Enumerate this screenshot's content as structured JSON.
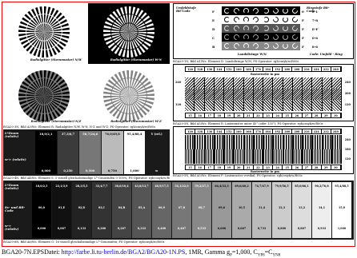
{
  "footer": {
    "prefix": "BGA20-7N.EPSDatei: ",
    "link": "http://farbe.li.tu-berlin.de/BGA2/BGA20-1N.PS",
    "suffix": ", 1MR, Gamma g",
    "sub_p": "P",
    "suffix2": "=1,000, C",
    "sub_yp": "YP8",
    "suffix3": "=C",
    "sub_yn": "YN8"
  },
  "sunburst": {
    "label_tl": "Radialgitter (Sternmuster) N/W",
    "label_tr": "Radialgitter (Sternmuster) W-N",
    "label_bl": "Radialgitter (Sternmuster) N/Z",
    "label_br": "Radialgitter (Sternmuster) W-Z"
  },
  "captions": {
    "sunburst": "BGA20-3N, Bild A3/Ws: Element R: Radialgitter N/W, W-N, N-Z und W-Z; PS-Operator: rgb/cmyk/w/R00s",
    "steps5": "BGA20-4N, Bild A4/Ws: Element S: 5 visuell gleichabständige L*-Graustufen 0-100%; PS-Operator: rgb/cmyk/w/R00s",
    "steps16": "BGA20-6N, Bild A6/Ws: Element G: 16 visuell gleichabständige L*-Graustufen; PS-Operator: rgb/cmyk/w/R00s",
    "landolt": "BGA20-1N, Bild A1/Ws: Element D: Landoltringe W/N; PS-Operator: rgb/cmyk/w/R00s",
    "raster1": "BGA20-5N, Bild A5/Ws: Element E: Linienraster unter 45° (oder 135°); PS-Operator: rgb/cmyk/w/R00s",
    "raster2": "BGA20-5N, Bild A5/Ws: Element F: Linienraster vertikal; PS-Operator: rgb/cmyk/w/R00s"
  },
  "landolt": {
    "title_left": "Umfeldstufe Bit-Code",
    "title_right": "Ringstufe Bit-Code",
    "left_codes": [
      "F",
      "E",
      "D",
      "C",
      "B"
    ],
    "right_codes": [
      "0-1",
      "7-8",
      "E-F",
      "0-6",
      "8-6"
    ],
    "right_letters": [
      "0",
      "F",
      "F",
      "F",
      "F"
    ],
    "footer_left": "Landoltringe W/N",
    "footer_right": "Code: Umfeld - Ring"
  },
  "raster": {
    "top_nums": [
      "120",
      "128",
      "136",
      "144",
      "152",
      "160",
      "168",
      "176",
      "184",
      "192",
      "200",
      "208",
      "216",
      "224",
      "232",
      "240"
    ],
    "bottom_nums": [
      "15",
      "16",
      "17",
      "18",
      "19",
      "20",
      "21",
      "22",
      "23",
      "24",
      "25",
      "26",
      "27",
      "28",
      "29",
      "30"
    ],
    "side_top": "240",
    "side_mid1": "208",
    "side_mid2": "180",
    "side_bot": "120",
    "label": "Rasterweite in µm",
    "label2": "Rasterweite in µm"
  },
  "steps5": {
    "row1_label": "L*Dnom (relativ)",
    "row1_vals": [
      "18,0/2,1",
      "37,3/6,7",
      "56,7/24,6",
      "76,0/49,8",
      "95,4/88,4",
      "Y (rel.)"
    ],
    "row2_label": "w-> (relativ)",
    "row2_vals": [
      "0,000",
      "0,250",
      "0,500",
      "0,750",
      "1,000",
      "w"
    ]
  },
  "steps16": {
    "row1_label": "L*Dnom (relativ)",
    "row1_vals": [
      "18,0/2,5",
      "23,1/3,9",
      "28,3/5,5",
      "33,4/7,7",
      "38,6/10,4",
      "43,8/13,7",
      "48,9/17,5",
      "54,1/22,0",
      "59,2/27,3",
      "64,4/33,3",
      "69,6/40,2",
      "74,7/47,9",
      "79,9/56,5",
      "85,0/66,1",
      "90,2/76,8",
      "95,4/88,5"
    ],
    "row2_label": "8x- und Bit-Code",
    "row2_vals": [
      "00,0",
      "01,E",
      "02,D",
      "03,C",
      "04,B",
      "05,A",
      "06,9",
      "07,8",
      "08,7",
      "09,6",
      "10,5",
      "11,4",
      "12,3",
      "13,2",
      "14,1",
      "15,0"
    ],
    "row3_label": "w-> (relativ)",
    "row3_vals": [
      "0,000",
      "0,067",
      "0,133",
      "0,200",
      "0,267",
      "0,333",
      "0,400",
      "0,467",
      "0,533",
      "0,600",
      "0,667",
      "0,733",
      "0,800",
      "0,867",
      "0,933",
      "1,000"
    ]
  },
  "colors": {
    "frame": "#ee0000",
    "link": "#0000cc"
  }
}
